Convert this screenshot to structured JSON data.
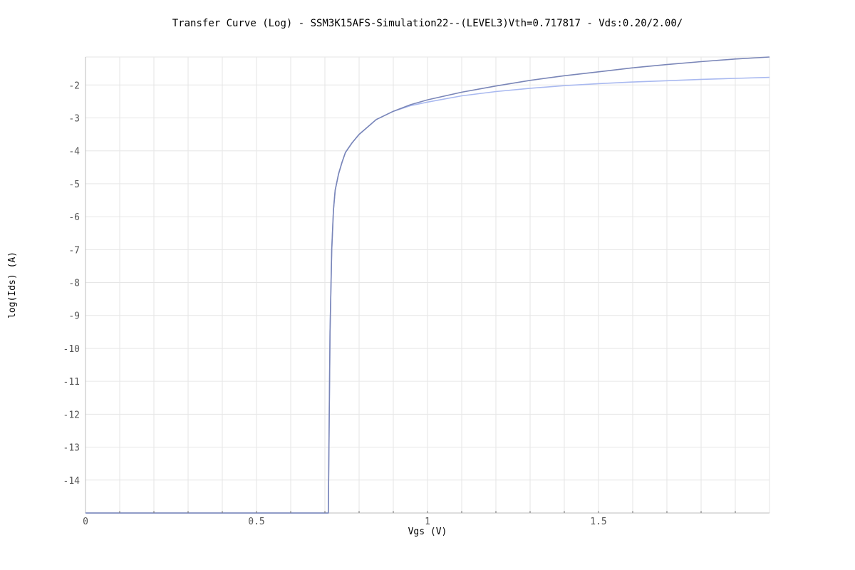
{
  "chart_data": {
    "type": "line",
    "title": "Transfer Curve (Log) - SSM3K15AFS-Simulation22--(LEVEL3)Vth=0.717817 - Vds:0.20/2.00/",
    "xlabel": "Vgs (V)",
    "ylabel": "log(Ids) (A)",
    "xlim": [
      0,
      2.0
    ],
    "ylim": [
      -15,
      -1.15
    ],
    "x_ticks": [
      0,
      0.5,
      1,
      1.5
    ],
    "x_tick_labels": [
      "0",
      "0.5",
      "1",
      "1.5"
    ],
    "x_minor_step": 0.1,
    "y_ticks": [
      -2,
      -3,
      -4,
      -5,
      -6,
      -7,
      -8,
      -9,
      -10,
      -11,
      -12,
      -13,
      -14
    ],
    "y_tick_labels": [
      "-2",
      "-3",
      "-4",
      "-5",
      "-6",
      "-7",
      "-8",
      "-9",
      "-10",
      "-11",
      "-12",
      "-13",
      "-14"
    ],
    "grid": true,
    "colors": {
      "vds_0_20": "#a9b9f0",
      "vds_2_00": "#7a86b8"
    },
    "x": [
      0,
      0.1,
      0.2,
      0.3,
      0.4,
      0.5,
      0.6,
      0.7,
      0.71,
      0.715,
      0.72,
      0.725,
      0.73,
      0.74,
      0.75,
      0.76,
      0.78,
      0.8,
      0.85,
      0.9,
      0.95,
      1.0,
      1.1,
      1.2,
      1.3,
      1.4,
      1.5,
      1.6,
      1.7,
      1.8,
      1.9,
      2.0
    ],
    "series": [
      {
        "key": "vds_0_20",
        "values": [
          -15,
          -15,
          -15,
          -15,
          -15,
          -15,
          -15,
          -15,
          -15,
          -9.5,
          -7.0,
          -5.8,
          -5.2,
          -4.7,
          -4.35,
          -4.05,
          -3.75,
          -3.5,
          -3.05,
          -2.8,
          -2.63,
          -2.52,
          -2.33,
          -2.2,
          -2.1,
          -2.02,
          -1.96,
          -1.91,
          -1.87,
          -1.83,
          -1.8,
          -1.77
        ]
      },
      {
        "key": "vds_2_00",
        "values": [
          -15,
          -15,
          -15,
          -15,
          -15,
          -15,
          -15,
          -15,
          -15,
          -9.5,
          -7.0,
          -5.8,
          -5.2,
          -4.7,
          -4.35,
          -4.05,
          -3.75,
          -3.5,
          -3.05,
          -2.8,
          -2.6,
          -2.45,
          -2.22,
          -2.03,
          -1.86,
          -1.72,
          -1.6,
          -1.48,
          -1.38,
          -1.29,
          -1.21,
          -1.15
        ]
      }
    ]
  }
}
